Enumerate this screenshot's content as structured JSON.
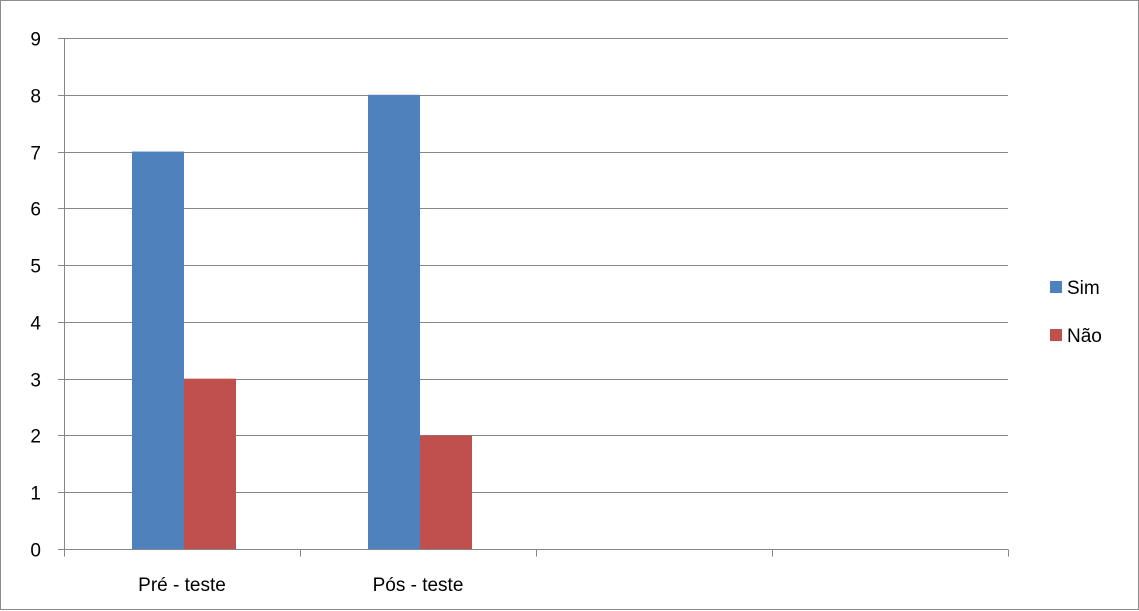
{
  "chart_data": {
    "type": "bar",
    "categories": [
      "Pré - teste",
      "Pós - teste",
      "",
      ""
    ],
    "series": [
      {
        "name": "Sim",
        "values": [
          7,
          8,
          null,
          null
        ],
        "color": "#4f81bd"
      },
      {
        "name": "Não",
        "values": [
          3,
          2,
          null,
          null
        ],
        "color": "#c0504d"
      }
    ],
    "ylim": [
      0,
      9
    ],
    "yticks": [
      "0",
      "1",
      "2",
      "3",
      "4",
      "5",
      "6",
      "7",
      "8",
      "9"
    ],
    "grid": true,
    "legend_position": "right",
    "gridline_color": "#868686",
    "axis_color": "#868686"
  }
}
